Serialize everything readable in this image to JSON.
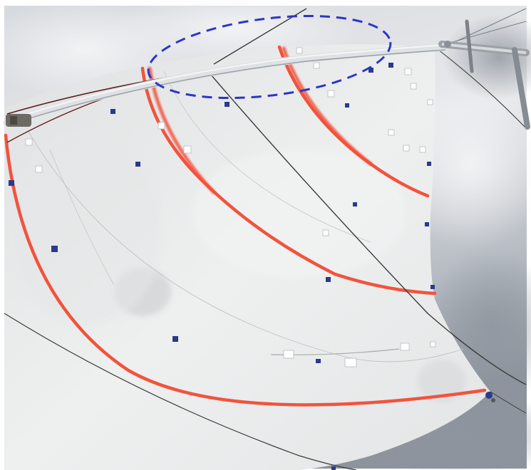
{
  "photo": {
    "subject": "spinnaker-sail-with-stripes",
    "colors": {
      "frame": "#ffffff",
      "sky_light": "#e2e4e8",
      "sky_dark": "#a3a9b2",
      "sea": "#6f7c86",
      "sail": "#eceeee",
      "sail_shadow": "#d9dbdc",
      "stripe": "#f2533d",
      "highlight": "#2b36c8",
      "rigging": "#3b3b3b",
      "target": "#2a3a8c"
    },
    "stripes": 4,
    "annotation": {
      "shape": "dashed-ellipse",
      "color": "#2b36c8"
    }
  }
}
